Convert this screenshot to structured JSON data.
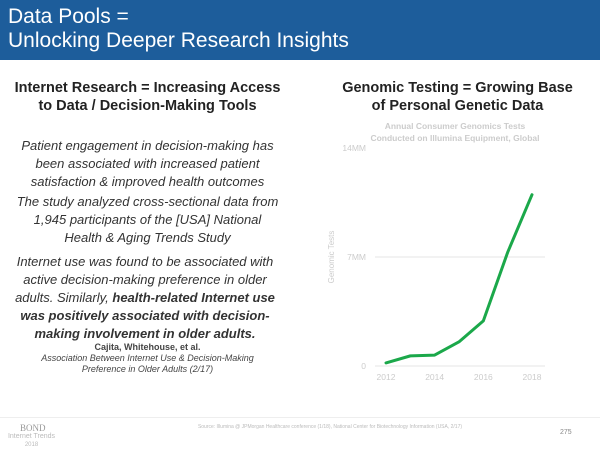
{
  "header": {
    "line1": "Data Pools =",
    "line2": "Unlocking Deeper Research Insights"
  },
  "left": {
    "title1": "Internet Research = Increasing Access",
    "title2": "to Data / Decision-Making Tools",
    "p1": [
      "Patient engagement in decision-making has",
      "been associated with increased patient",
      "satisfaction & improved health outcomes"
    ],
    "p2": [
      "The study analyzed cross-sectional data from",
      "1,945 participants of the [USA] National",
      "Health & Aging Trends Study"
    ],
    "p3a": [
      "Internet use was found to be associated with",
      "active decision-making preference in older",
      "adults. Similarly, "
    ],
    "p3bold": "health-related Internet use was positively associated with decision-making involvement in older adults.",
    "cite_author": "Cajita, Whitehouse, et al.",
    "cite_title1": "Association Between Internet Use & Decision-Making",
    "cite_title2": "Preference in Older Adults (2/17)"
  },
  "right": {
    "title1": "Genomic Testing = Growing Base",
    "title2": "of Personal Genetic Data"
  },
  "chart_data": {
    "type": "line",
    "title": [
      "Annual Consumer Genomics Tests",
      "Conducted on Illumina Equipment, Global"
    ],
    "ylabel": "Genomic Tests",
    "ylim": [
      0,
      14
    ],
    "yticks": [
      "0",
      "7MM",
      "14MM"
    ],
    "xticks": [
      "2012",
      "2014",
      "2016",
      "2018"
    ],
    "x": [
      2012,
      2013,
      2014,
      2015,
      2016,
      2017,
      2018
    ],
    "series": [
      {
        "values": [
          0.2,
          0.65,
          0.7,
          1.55,
          2.9,
          7.3,
          11.0
        ],
        "color": "#1ba84a"
      }
    ],
    "units": "millions",
    "grid": true
  },
  "footer": {
    "brand": "BOND",
    "sub1": "Internet Trends",
    "sub2": "2018",
    "source": "Source: Illumina @ JPMorgan Healthcare conference (1/18), National Center for Biotechnology Information (USA, 2/17)",
    "page": "275"
  }
}
